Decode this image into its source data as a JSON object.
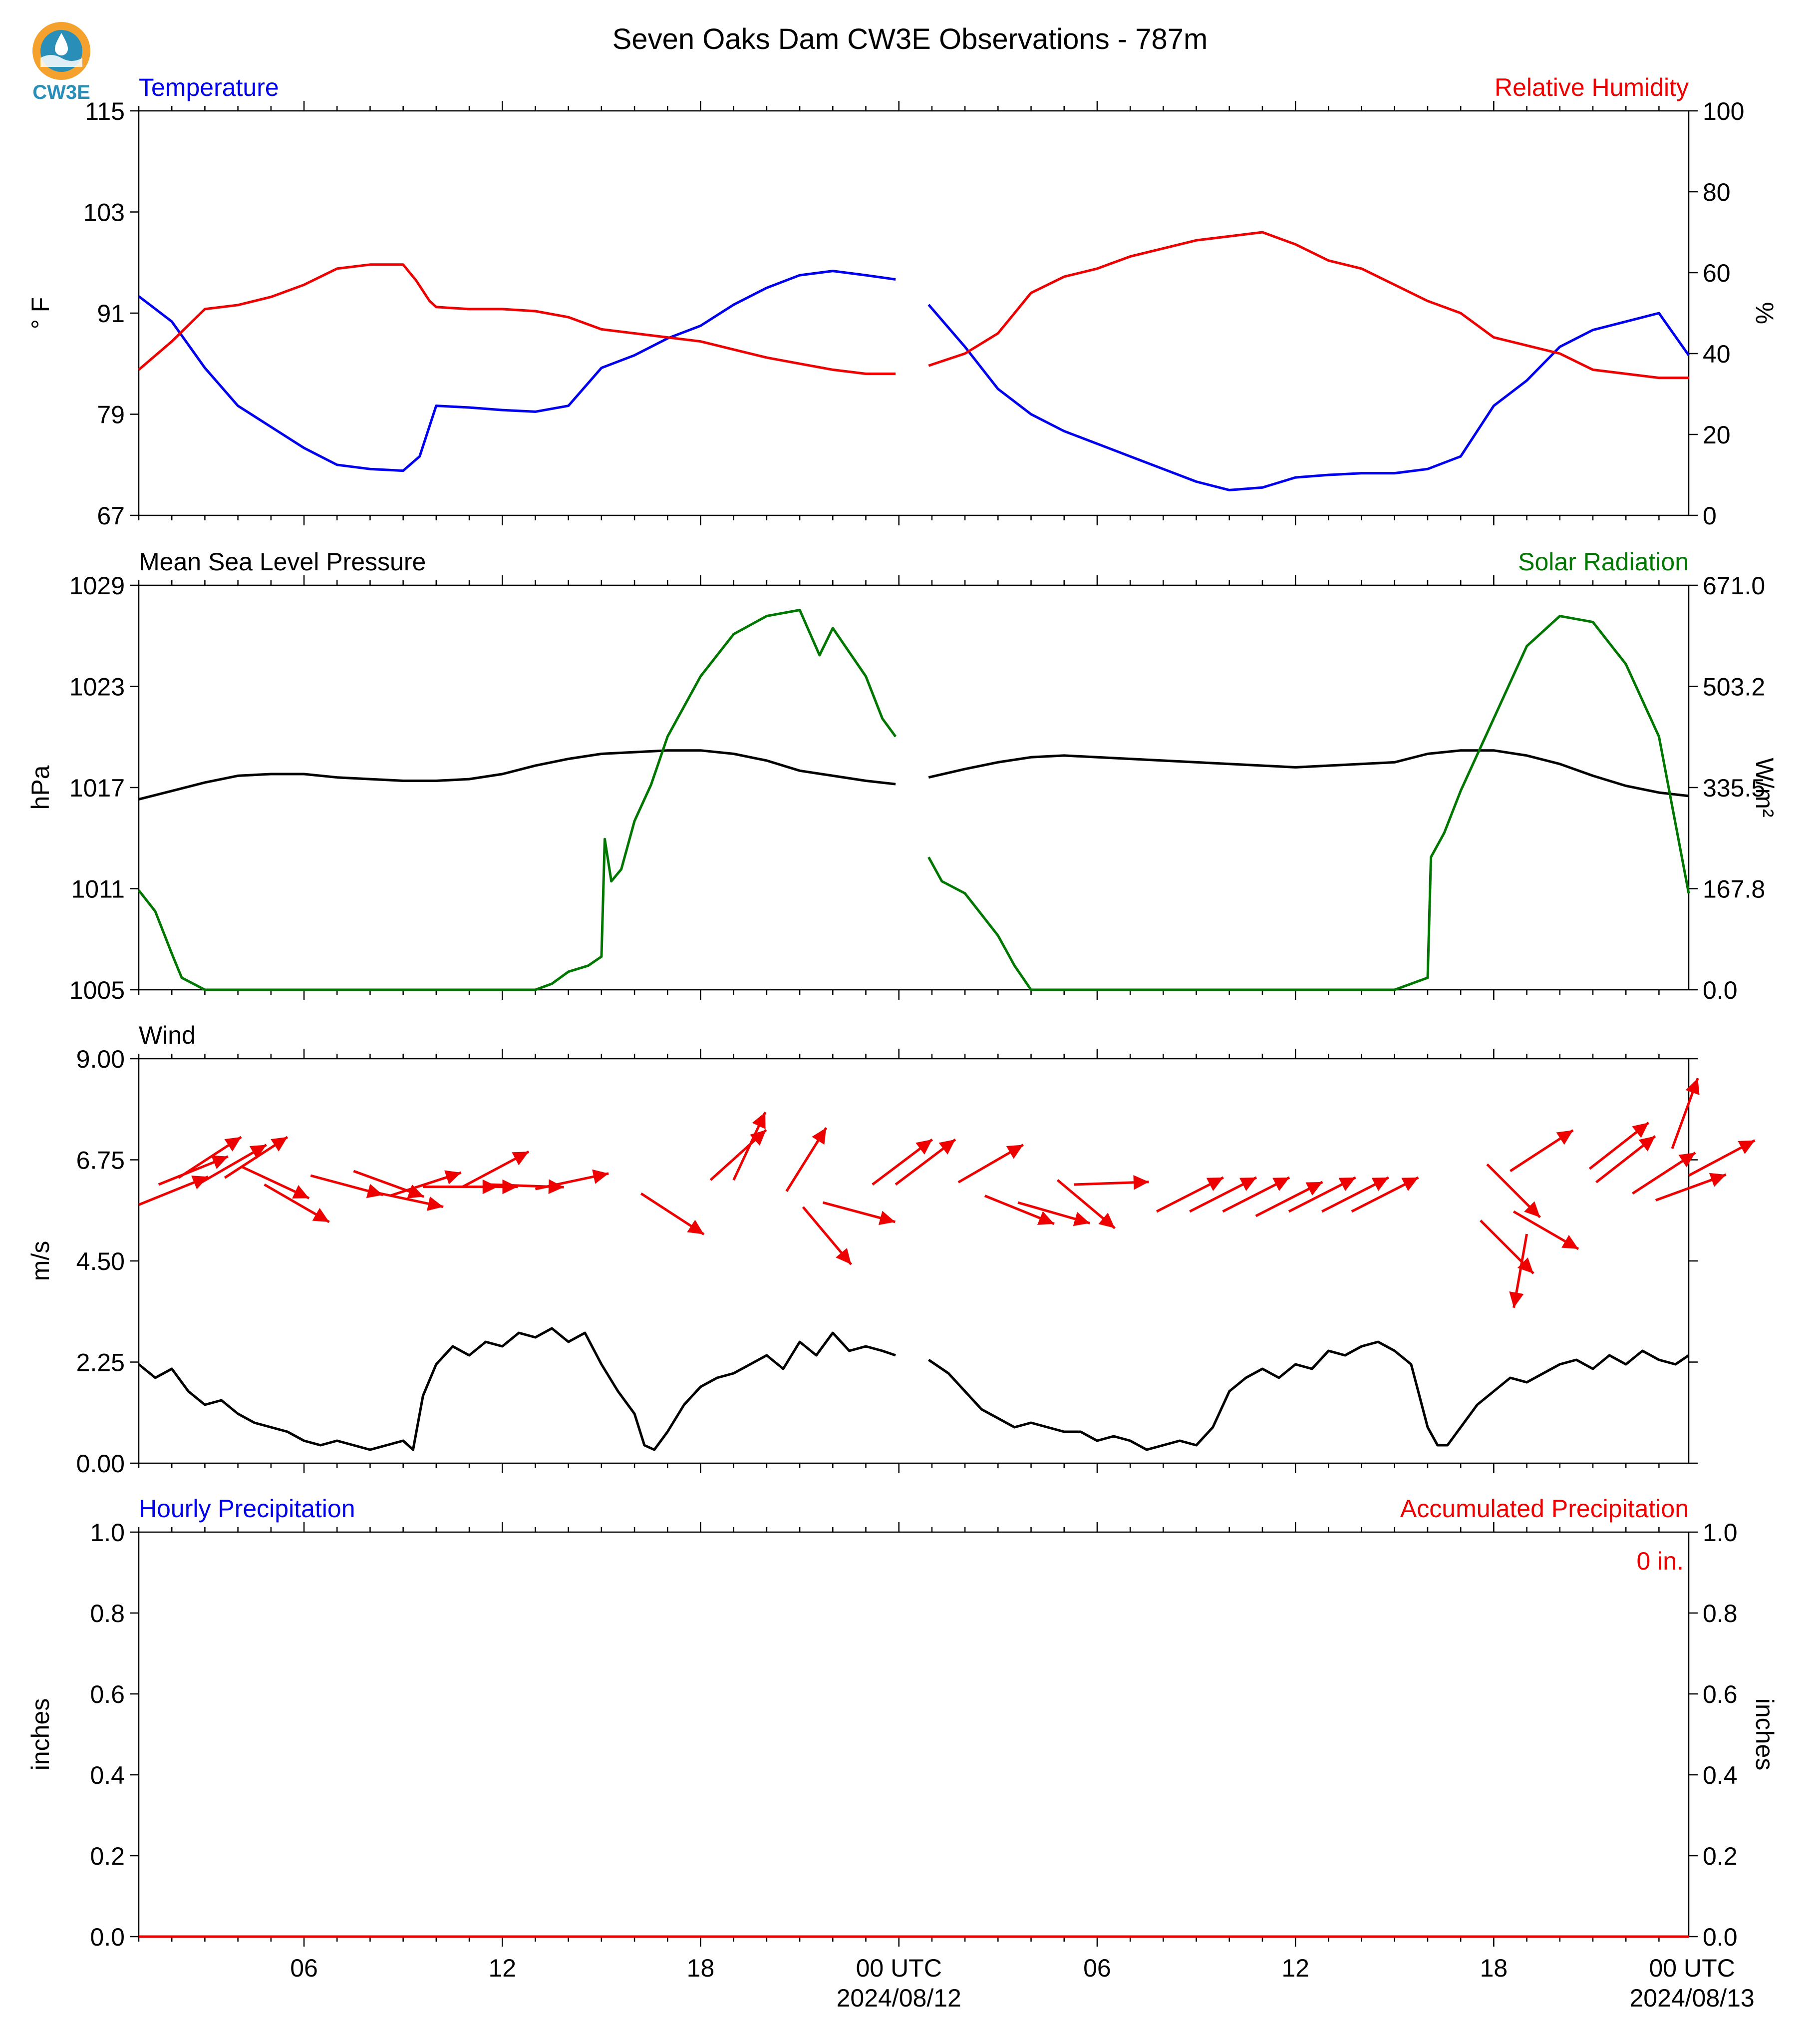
{
  "title": "Seven Oaks Dam CW3E Observations - 787m",
  "logo": {
    "text": "CW3E",
    "icon": "cw3e-water-drop-logo"
  },
  "colors": {
    "blue": "#0000ee",
    "red": "#ee0000",
    "green": "#007700",
    "black": "#000000"
  },
  "x_axis": {
    "ticks": [
      "06",
      "12",
      "18",
      "00 UTC",
      "06",
      "12",
      "18",
      "00 UTC"
    ],
    "dates": [
      "2024/08/12",
      "2024/08/13"
    ]
  },
  "chart_data": [
    {
      "type": "line",
      "title_left": "Temperature",
      "title_right": "Relative Humidity",
      "ylabel_left": "° F",
      "ylabel_right": "%",
      "ylim_left": [
        67,
        115
      ],
      "ylim_right": [
        0,
        100
      ],
      "yticks_left": [
        "67",
        "79",
        "91",
        "103",
        "115"
      ],
      "yticks_right": [
        "0",
        "20",
        "40",
        "60",
        "80",
        "100"
      ],
      "series": [
        {
          "name": "Temperature",
          "axis": "left",
          "color": "#0000ee",
          "hours": [
            1,
            2,
            3,
            4,
            5,
            6,
            7,
            8,
            9,
            9.5,
            10,
            11,
            12,
            13,
            14,
            15,
            16,
            17,
            18,
            19,
            20,
            21,
            22,
            23,
            23.9,
            null,
            24.9,
            26,
            27,
            28,
            29,
            30,
            31,
            32,
            33,
            34,
            35,
            36,
            37,
            38,
            39,
            40,
            41,
            42,
            43,
            44,
            45,
            46,
            47,
            47.9
          ],
          "values": [
            93,
            90,
            84.5,
            80,
            77.5,
            75,
            73,
            72.5,
            72.3,
            74,
            80,
            79.8,
            79.5,
            79.3,
            80,
            84.5,
            86,
            88,
            89.5,
            92,
            94,
            95.5,
            96,
            95.5,
            95,
            null,
            92,
            87,
            82,
            79,
            77,
            75.5,
            74,
            72.5,
            71,
            70,
            70.3,
            71.5,
            71.8,
            72,
            72,
            72.5,
            74,
            80,
            83,
            87,
            89,
            90,
            91,
            86
          ]
        },
        {
          "name": "Relative Humidity",
          "axis": "right",
          "color": "#ee0000",
          "hours": [
            1,
            2,
            3,
            4,
            5,
            6,
            7,
            8,
            9,
            9.4,
            9.8,
            10,
            11,
            12,
            13,
            14,
            15,
            16,
            17,
            18,
            19,
            20,
            21,
            22,
            23,
            23.9,
            null,
            24.9,
            26,
            27,
            28,
            29,
            30,
            31,
            32,
            33,
            34,
            35,
            36,
            37,
            38,
            39,
            40,
            41,
            42,
            43,
            44,
            45,
            46,
            47,
            47.9
          ],
          "values": [
            36,
            43,
            51,
            52,
            54,
            57,
            61,
            62,
            62,
            58,
            53,
            51.5,
            51,
            51,
            50.5,
            49,
            46,
            45,
            44,
            43,
            41,
            39,
            37.5,
            36,
            35,
            35,
            null,
            37,
            40,
            45,
            55,
            59,
            61,
            64,
            66,
            68,
            69,
            70,
            67,
            63,
            61,
            57,
            53,
            50,
            44,
            42,
            40,
            36,
            35,
            34,
            34
          ]
        }
      ]
    },
    {
      "type": "line",
      "title_left": "Mean Sea Level Pressure",
      "title_right": "Solar Radiation",
      "ylabel_left": "hPa",
      "ylabel_right": "W/m²",
      "ylim_left": [
        1005,
        1029
      ],
      "ylim_right": [
        0,
        671
      ],
      "yticks_left": [
        "1005",
        "1011",
        "1017",
        "1023",
        "1029"
      ],
      "yticks_right": [
        "0.0",
        "167.8",
        "335.5",
        "503.2",
        "671.0"
      ],
      "series": [
        {
          "name": "Mean Sea Level Pressure",
          "axis": "left",
          "color": "#000000",
          "hours": [
            1,
            2,
            3,
            4,
            5,
            6,
            7,
            8,
            9,
            10,
            11,
            12,
            13,
            14,
            15,
            16,
            17,
            18,
            19,
            20,
            21,
            22,
            23,
            23.9,
            null,
            24.9,
            26,
            27,
            28,
            29,
            30,
            31,
            32,
            33,
            34,
            35,
            36,
            37,
            38,
            39,
            40,
            41,
            42,
            43,
            44,
            45,
            46,
            47,
            47.9
          ],
          "values": [
            1016.3,
            1016.8,
            1017.3,
            1017.7,
            1017.8,
            1017.8,
            1017.6,
            1017.5,
            1017.4,
            1017.4,
            1017.5,
            1017.8,
            1018.3,
            1018.7,
            1019.0,
            1019.1,
            1019.2,
            1019.2,
            1019.0,
            1018.6,
            1018.0,
            1017.7,
            1017.4,
            1017.2,
            null,
            1017.6,
            1018.1,
            1018.5,
            1018.8,
            1018.9,
            1018.8,
            1018.7,
            1018.6,
            1018.5,
            1018.4,
            1018.3,
            1018.2,
            1018.3,
            1018.4,
            1018.5,
            1019.0,
            1019.2,
            1019.2,
            1018.9,
            1018.4,
            1017.7,
            1017.1,
            1016.7,
            1016.5
          ]
        },
        {
          "name": "Solar Radiation",
          "axis": "right",
          "color": "#007700",
          "hours": [
            1,
            1.5,
            2,
            2.3,
            3,
            8,
            13,
            13.5,
            14,
            14.6,
            15,
            15.1,
            15.3,
            15.6,
            16,
            16.5,
            17,
            18,
            19,
            20,
            21,
            21.6,
            22,
            23,
            23.5,
            23.9,
            null,
            24.9,
            25.3,
            26,
            27,
            27.5,
            28,
            30,
            35,
            39,
            40,
            40.1,
            40.5,
            41,
            42,
            43,
            44,
            45,
            46,
            47,
            47.9
          ],
          "values": [
            165,
            130,
            60,
            20,
            0,
            0,
            0,
            10,
            30,
            40,
            55,
            250,
            180,
            200,
            280,
            340,
            420,
            520,
            590,
            620,
            630,
            555,
            600,
            520,
            450,
            420,
            null,
            220,
            180,
            160,
            90,
            40,
            0,
            0,
            0,
            0,
            20,
            220,
            260,
            330,
            450,
            570,
            620,
            610,
            540,
            420,
            160
          ]
        }
      ]
    },
    {
      "type": "line",
      "title_left": "Wind",
      "ylabel_left": "m/s",
      "ylim_left": [
        0,
        9
      ],
      "yticks_left": [
        "0.00",
        "2.25",
        "4.50",
        "6.75",
        "9.00"
      ],
      "series": [
        {
          "name": "Wind",
          "axis": "left",
          "color": "#000000",
          "hours": [
            1,
            1.5,
            2,
            2.5,
            3,
            3.5,
            4,
            4.5,
            5,
            5.5,
            6,
            6.5,
            7,
            7.5,
            8,
            8.5,
            9,
            9.3,
            9.6,
            10,
            10.5,
            11,
            11.5,
            12,
            12.5,
            13,
            13.5,
            14,
            14.5,
            15,
            15.5,
            16,
            16.3,
            16.6,
            17,
            17.5,
            18,
            18.5,
            19,
            19.5,
            20,
            20.5,
            21,
            21.5,
            22,
            22.5,
            23,
            23.5,
            23.9,
            null,
            24.9,
            25.5,
            26,
            26.5,
            27,
            27.5,
            28,
            28.5,
            29,
            29.5,
            30,
            30.5,
            31,
            31.5,
            32,
            32.5,
            33,
            33.5,
            34,
            34.5,
            35,
            35.5,
            36,
            36.5,
            37,
            37.5,
            38,
            38.5,
            39,
            39.5,
            40,
            40.3,
            40.6,
            41,
            41.5,
            42,
            42.5,
            43,
            43.5,
            44,
            44.5,
            45,
            45.5,
            46,
            46.5,
            47,
            47.5,
            47.9
          ],
          "values": [
            2.2,
            1.9,
            2.1,
            1.6,
            1.3,
            1.4,
            1.1,
            0.9,
            0.8,
            0.7,
            0.5,
            0.4,
            0.5,
            0.4,
            0.3,
            0.4,
            0.5,
            0.3,
            1.5,
            2.2,
            2.6,
            2.4,
            2.7,
            2.6,
            2.9,
            2.8,
            3.0,
            2.7,
            2.9,
            2.2,
            1.6,
            1.1,
            0.4,
            0.3,
            0.7,
            1.3,
            1.7,
            1.9,
            2.0,
            2.2,
            2.4,
            2.1,
            2.7,
            2.4,
            2.9,
            2.5,
            2.6,
            2.5,
            2.4,
            null,
            2.3,
            2.0,
            1.6,
            1.2,
            1.0,
            0.8,
            0.9,
            0.8,
            0.7,
            0.7,
            0.5,
            0.6,
            0.5,
            0.3,
            0.4,
            0.5,
            0.4,
            0.8,
            1.6,
            1.9,
            2.1,
            1.9,
            2.2,
            2.1,
            2.5,
            2.4,
            2.6,
            2.7,
            2.5,
            2.2,
            0.8,
            0.4,
            0.4,
            0.8,
            1.3,
            1.6,
            1.9,
            1.8,
            2.0,
            2.2,
            2.3,
            2.1,
            2.4,
            2.2,
            2.5,
            2.3,
            2.2,
            2.4
          ]
        },
        {
          "name": "Wind direction",
          "axis": "left",
          "color": "#ee0000",
          "kind": "arrows",
          "arrows": [
            {
              "h": 1.0,
              "y": 5.75,
              "deg": 248
            },
            {
              "h": 1.6,
              "y": 6.2,
              "deg": 248
            },
            {
              "h": 2.2,
              "y": 6.35,
              "deg": 237
            },
            {
              "h": 2.9,
              "y": 6.25,
              "deg": 240
            },
            {
              "h": 3.6,
              "y": 6.35,
              "deg": 237
            },
            {
              "h": 4.1,
              "y": 6.6,
              "deg": 295
            },
            {
              "h": 4.8,
              "y": 6.2,
              "deg": 300
            },
            {
              "h": 6.2,
              "y": 6.4,
              "deg": 285
            },
            {
              "h": 7.5,
              "y": 6.5,
              "deg": 290
            },
            {
              "h": 8.0,
              "y": 6.05,
              "deg": 282
            },
            {
              "h": 8.6,
              "y": 5.95,
              "deg": 252
            },
            {
              "h": 9.6,
              "y": 6.15,
              "deg": 270
            },
            {
              "h": 10.2,
              "y": 6.15,
              "deg": 270
            },
            {
              "h": 10.8,
              "y": 6.15,
              "deg": 242
            },
            {
              "h": 11.6,
              "y": 6.2,
              "deg": 272
            },
            {
              "h": 13.0,
              "y": 6.1,
              "deg": 258
            },
            {
              "h": 16.2,
              "y": 6.0,
              "deg": 303
            },
            {
              "h": 18.3,
              "y": 6.3,
              "deg": 228
            },
            {
              "h": 19.0,
              "y": 6.3,
              "deg": 205
            },
            {
              "h": 20.6,
              "y": 6.05,
              "deg": 212
            },
            {
              "h": 21.1,
              "y": 5.7,
              "deg": 320
            },
            {
              "h": 21.7,
              "y": 5.8,
              "deg": 285
            },
            {
              "h": 23.2,
              "y": 6.2,
              "deg": 233
            },
            {
              "h": 23.9,
              "y": 6.2,
              "deg": 233
            },
            {
              "h": 25.8,
              "y": 6.25,
              "deg": 240
            },
            {
              "h": 26.6,
              "y": 5.95,
              "deg": 292
            },
            {
              "h": 27.6,
              "y": 5.8,
              "deg": 286
            },
            {
              "h": 28.8,
              "y": 6.3,
              "deg": 310
            },
            {
              "h": 29.3,
              "y": 6.2,
              "deg": 268
            },
            {
              "h": 31.8,
              "y": 5.6,
              "deg": 243
            },
            {
              "h": 32.8,
              "y": 5.6,
              "deg": 243
            },
            {
              "h": 33.8,
              "y": 5.6,
              "deg": 243
            },
            {
              "h": 34.8,
              "y": 5.5,
              "deg": 243
            },
            {
              "h": 35.8,
              "y": 5.6,
              "deg": 243
            },
            {
              "h": 36.8,
              "y": 5.6,
              "deg": 243
            },
            {
              "h": 37.7,
              "y": 5.6,
              "deg": 243
            },
            {
              "h": 41.6,
              "y": 5.4,
              "deg": 315
            },
            {
              "h": 41.8,
              "y": 6.65,
              "deg": 315
            },
            {
              "h": 42.5,
              "y": 6.5,
              "deg": 237
            },
            {
              "h": 42.6,
              "y": 5.6,
              "deg": 300
            },
            {
              "h": 43.0,
              "y": 5.1,
              "deg": 10
            },
            {
              "h": 44.9,
              "y": 6.55,
              "deg": 232
            },
            {
              "h": 45.1,
              "y": 6.25,
              "deg": 232
            },
            {
              "h": 46.2,
              "y": 6.0,
              "deg": 237
            },
            {
              "h": 46.9,
              "y": 5.85,
              "deg": 250
            },
            {
              "h": 47.4,
              "y": 7.0,
              "deg": 200
            },
            {
              "h": 47.9,
              "y": 6.4,
              "deg": 242
            }
          ]
        }
      ]
    },
    {
      "type": "bar",
      "title_left": "Hourly Precipitation",
      "title_right": "Accumulated Precipitation",
      "annotation": "0 in.",
      "ylabel_left": "inches",
      "ylabel_right": "inches",
      "ylim_left": [
        0,
        1
      ],
      "ylim_right": [
        0,
        1
      ],
      "yticks_left": [
        "0.0",
        "0.2",
        "0.4",
        "0.6",
        "0.8",
        "1.0"
      ],
      "yticks_right": [
        "0.0",
        "0.2",
        "0.4",
        "0.6",
        "0.8",
        "1.0"
      ],
      "series": [
        {
          "name": "Hourly Precipitation",
          "axis": "left",
          "color": "#0000ee",
          "hours": [
            1,
            47.9
          ],
          "values": [
            0,
            0
          ]
        },
        {
          "name": "Accumulated Precipitation",
          "axis": "right",
          "color": "#ee0000",
          "hours": [
            1,
            47.9
          ],
          "values": [
            0,
            0
          ]
        }
      ]
    }
  ]
}
